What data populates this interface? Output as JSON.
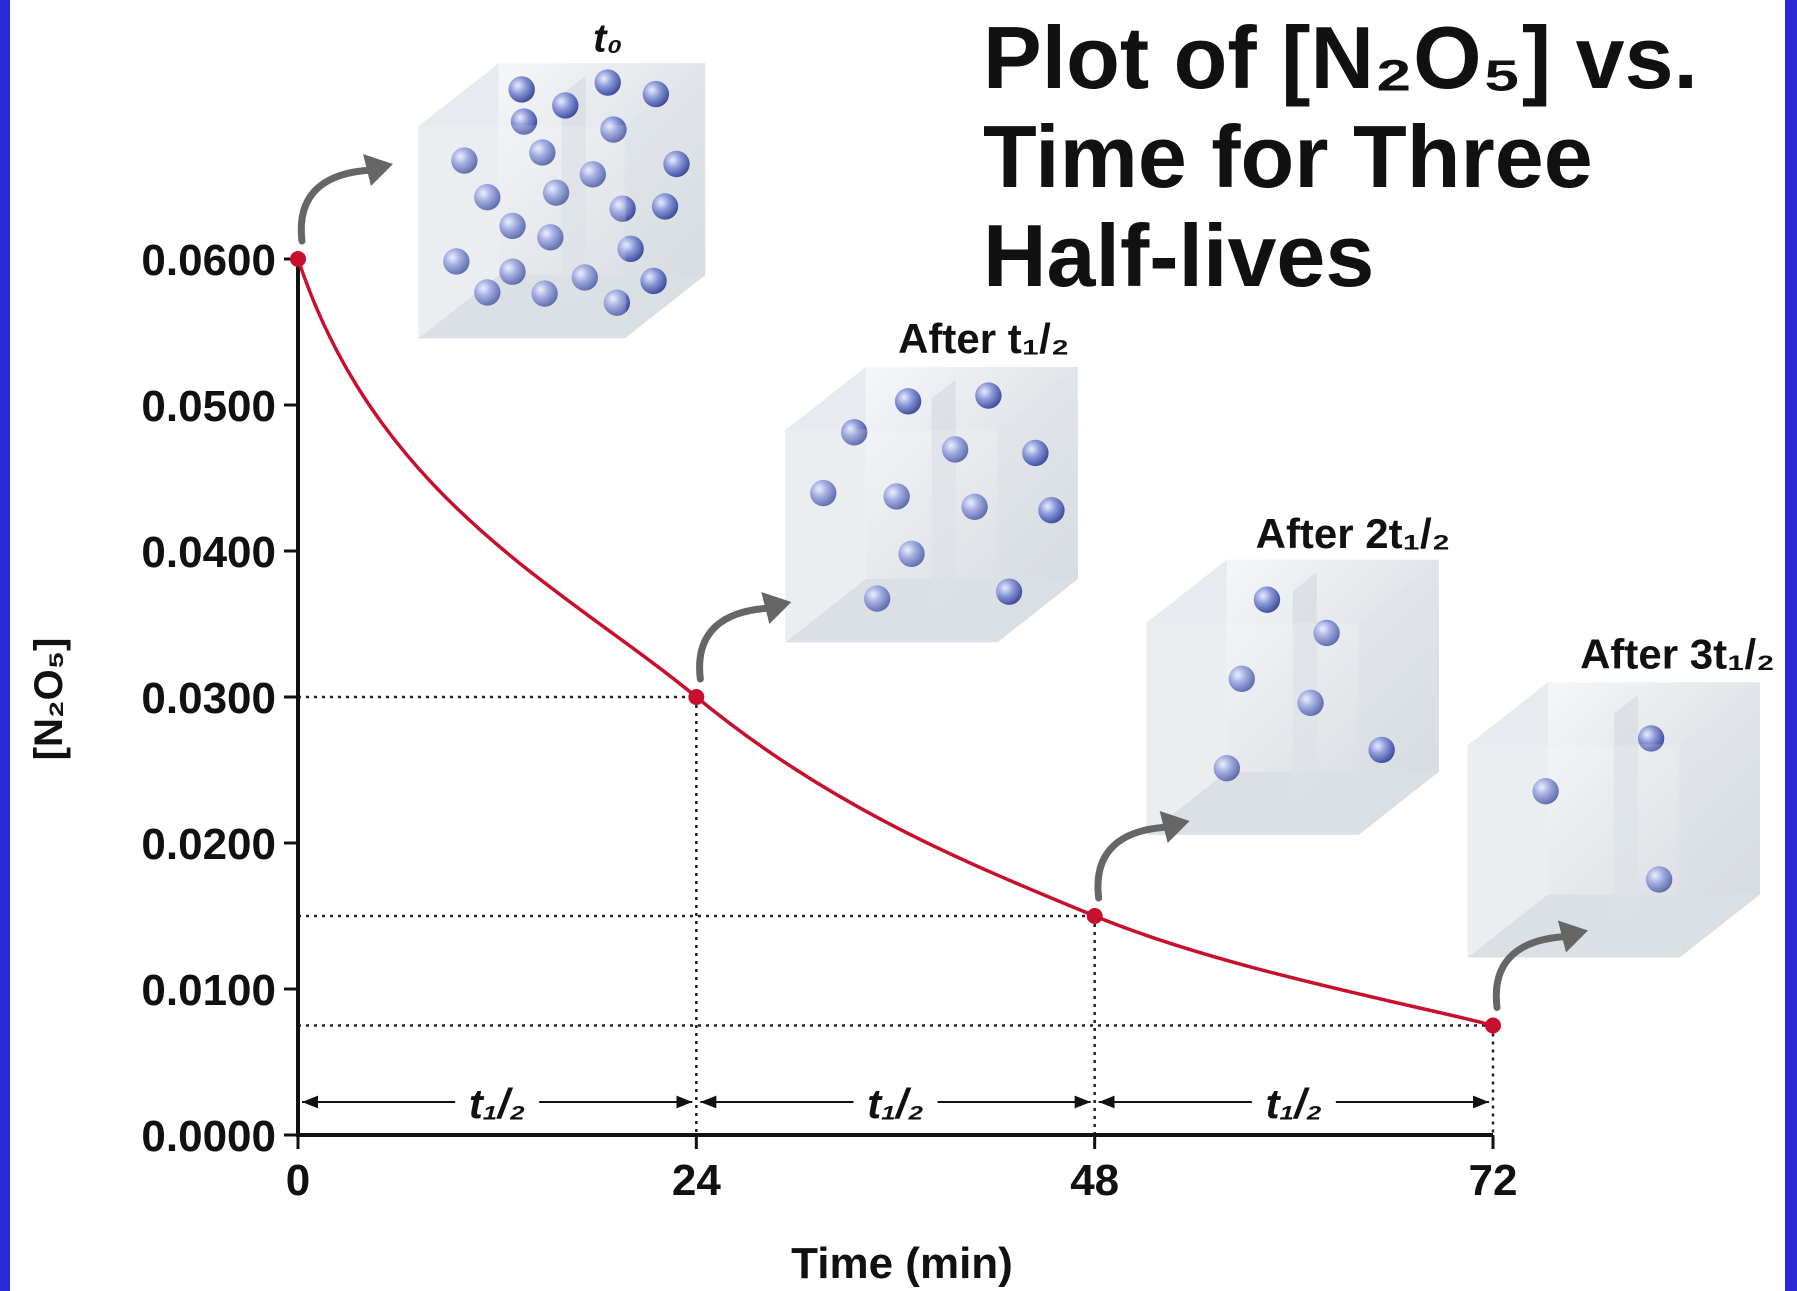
{
  "chart_data": {
    "type": "line",
    "title": [
      "Plot of [N₂O₅] vs.",
      "Time for Three",
      "Half-lives"
    ],
    "x_label": "Time (min)",
    "y_label": "[N₂O₅]",
    "x": [
      0,
      24,
      48,
      72
    ],
    "values": [
      0.06,
      0.03,
      0.015,
      0.0075
    ],
    "color": "#c8102e",
    "xlim": [
      0,
      72
    ],
    "ylim": [
      0,
      0.06
    ],
    "xticks": [
      0,
      24,
      48,
      72
    ],
    "yticks": [
      {
        "value": 0,
        "label": "0.0000"
      },
      {
        "value": 0.01,
        "label": "0.0100"
      },
      {
        "value": 0.02,
        "label": "0.0200"
      },
      {
        "value": 0.03,
        "label": "0.0300"
      },
      {
        "value": 0.04,
        "label": "0.0400"
      },
      {
        "value": 0.05,
        "label": "0.0500"
      },
      {
        "value": 0.06,
        "label": "0.0600"
      }
    ],
    "snapshot_labels": [
      "t₀",
      "After t₁/₂",
      "After 2t₁/₂",
      "After 3t₁/₂"
    ],
    "interval_labels": [
      "t₁/₂",
      "t₁/₂",
      "t₁/₂"
    ]
  }
}
